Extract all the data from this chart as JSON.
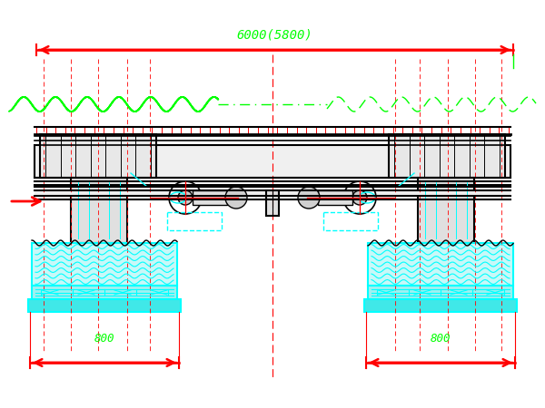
{
  "bg_color": "#ffffff",
  "red": "#ff0000",
  "green": "#00ff00",
  "cyan": "#00ffff",
  "black": "#000000",
  "title_text": "6000(5800)",
  "dim_800_left": "800",
  "dim_800_right": "800",
  "fig_width": 6.0,
  "fig_height": 4.5,
  "dpi": 100
}
